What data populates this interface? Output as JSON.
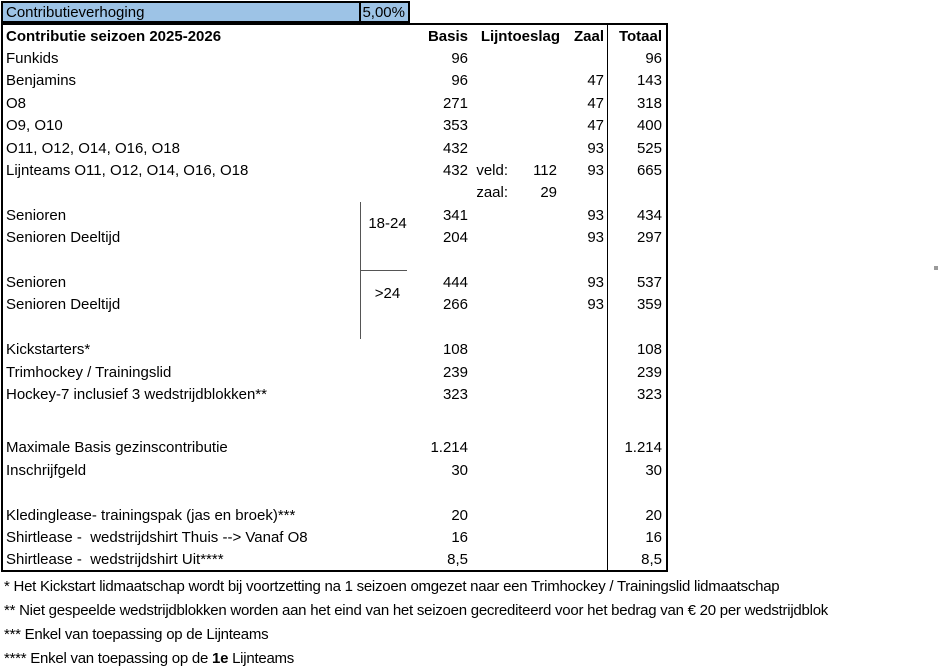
{
  "verhoging": {
    "label": "Contributieverhoging",
    "value": "5,00%",
    "fill_color": "#9DC3E6"
  },
  "table": {
    "title": "Contributie seizoen 2025-2026",
    "columns": {
      "basis": "Basis",
      "lijntoeslag": "Lijntoeslag",
      "zaal": "Zaal",
      "totaal": "Totaal"
    },
    "age_groups": {
      "first": "18-24",
      "second": ">24"
    },
    "rows": [
      {
        "label": "Funkids",
        "basis": "96",
        "totaal": "96"
      },
      {
        "label": "Benjamins",
        "basis": "96",
        "zaal": "47",
        "totaal": "143"
      },
      {
        "label": "O8",
        "basis": "271",
        "zaal": "47",
        "totaal": "318"
      },
      {
        "label": "O9, O10",
        "basis": "353",
        "zaal": "47",
        "totaal": "400"
      },
      {
        "label": "O11, O12, O14, O16, O18",
        "basis": "432",
        "zaal": "93",
        "totaal": "525"
      },
      {
        "label": "Lijnteams O11, O12, O14, O16, O18",
        "basis": "432",
        "lijn_label": "veld:",
        "lijn_value": "112",
        "zaal": "93",
        "totaal": "665"
      },
      {
        "lijn_label": "zaal:",
        "lijn_value": "29"
      },
      {
        "label": "Senioren",
        "basis": "341",
        "zaal": "93",
        "totaal": "434"
      },
      {
        "label": "Senioren Deeltijd",
        "basis": "204",
        "zaal": "93",
        "totaal": "297"
      },
      {
        "blank": true
      },
      {
        "label": "Senioren",
        "basis": "444",
        "zaal": "93",
        "totaal": "537"
      },
      {
        "label": "Senioren Deeltijd",
        "basis": "266",
        "zaal": "93",
        "totaal": "359"
      },
      {
        "blank": true
      },
      {
        "label": "Kickstarters*",
        "basis": "108",
        "totaal": "108"
      },
      {
        "label": "Trimhockey / Trainingslid",
        "basis": "239",
        "totaal": "239"
      },
      {
        "label": "Hockey-7 inclusief 3 wedstrijdblokken**",
        "basis": "323",
        "totaal": "323"
      },
      {
        "blank": true,
        "height": 31
      },
      {
        "label": "Maximale Basis gezinscontributie",
        "basis": "1.214",
        "totaal": "1.214"
      },
      {
        "label": "Inschrijfgeld",
        "basis": "30",
        "totaal": "30"
      },
      {
        "blank": true
      },
      {
        "label": "Kledinglease- trainingspak (jas en broek)***",
        "basis": "20",
        "totaal": "20"
      },
      {
        "label": "Shirtlease -  wedstrijdshirt Thuis --> Vanaf O8",
        "basis": "16",
        "totaal": "16"
      },
      {
        "label": "Shirtlease -  wedstrijdshirt Uit****",
        "basis": "8,5",
        "totaal": "8,5"
      }
    ]
  },
  "footnotes": [
    "* Het Kickstart lidmaatschap wordt bij voortzetting na 1 seizoen omgezet naar een Trimhockey / Trainingslid lidmaatschap",
    "** Niet gespeelde wedstrijdblokken worden aan het eind van het seizoen gecrediteerd voor het bedrag van € 20 per wedstrijdblok",
    "*** Enkel van toepassing op de Lijnteams"
  ],
  "footnote4": {
    "prefix": "**** Enkel van toepassing op de ",
    "bold": "1e",
    "suffix": " Lijnteams"
  }
}
